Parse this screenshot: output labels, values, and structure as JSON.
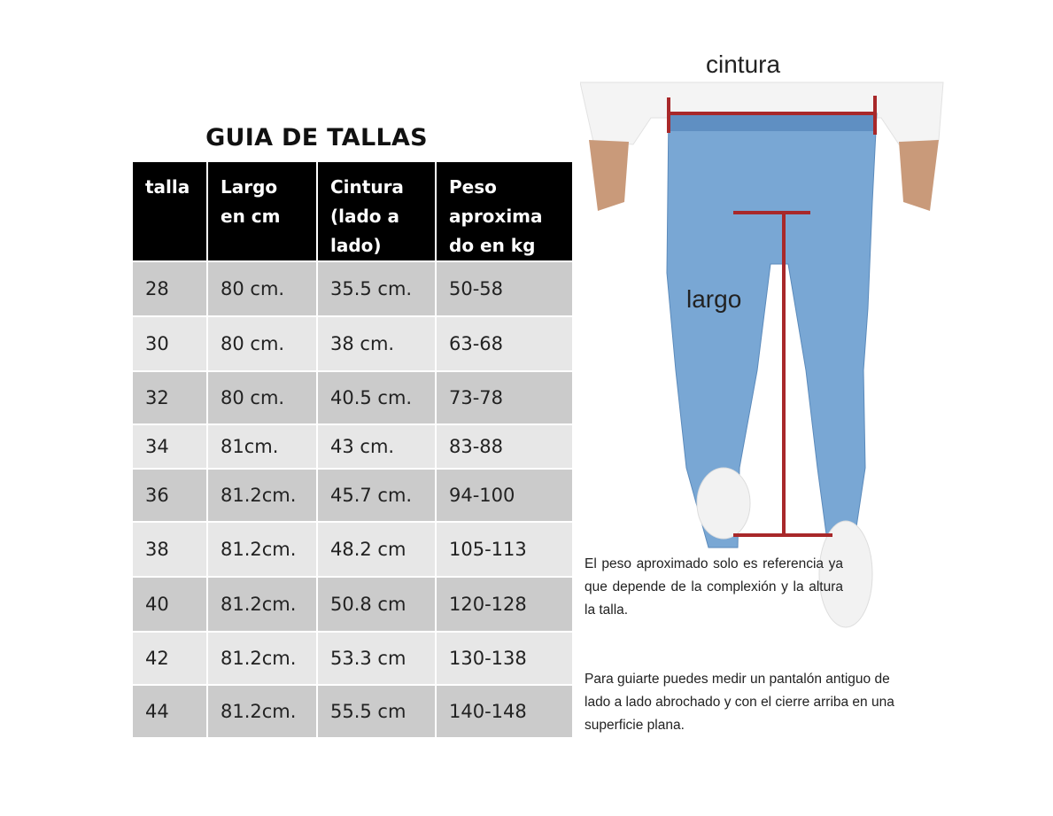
{
  "title": "GUIA DE TALLAS",
  "table": {
    "headers": [
      "talla",
      "Largo\nen cm",
      "Cintura\n(lado a\nlado)",
      "Peso\naproxima\ndo en kg"
    ],
    "rows": [
      [
        "28",
        "80 cm.",
        "35.5 cm.",
        "50-58"
      ],
      [
        "30",
        "80 cm.",
        "38 cm.",
        "63-68"
      ],
      [
        "32",
        "80 cm.",
        "40.5 cm.",
        "73-78"
      ],
      [
        "34",
        "81cm.",
        "43 cm.",
        "83-88"
      ],
      [
        "36",
        "81.2cm.",
        "45.7 cm.",
        "94-100"
      ],
      [
        "38",
        "81.2cm.",
        "48.2 cm",
        "105-113"
      ],
      [
        "40",
        "81.2cm.",
        "50.8 cm",
        "120-128"
      ],
      [
        "42",
        "81.2cm.",
        "53.3 cm",
        "130-138"
      ],
      [
        "44",
        "81.2cm.",
        "55.5 cm",
        "140-148"
      ]
    ]
  },
  "diagram": {
    "waist_label": "cintura",
    "length_label": "largo",
    "measure_color": "#a8282a",
    "denim_color": "#6f9fcf"
  },
  "notes": [
    "El peso aproximado solo es referencia ya que depende de la complexión y la altura la talla.",
    "Para guiarte puedes medir un pantalón antiguo de lado a lado abrochado y con el cierre arriba en una superficie plana."
  ]
}
